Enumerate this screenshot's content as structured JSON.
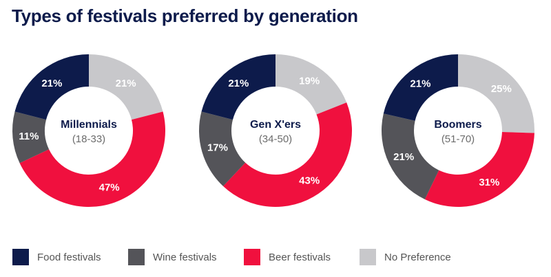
{
  "chart_data": {
    "type": "pie",
    "title": "Types of festivals preferred by generation",
    "categories": [
      "Food festivals",
      "Wine festivals",
      "Beer festivals",
      "No Preference"
    ],
    "colors": [
      "#0d1b4b",
      "#545459",
      "#f0103e",
      "#c8c8cb"
    ],
    "legend_position": "bottom",
    "charts": [
      {
        "name": "Millennials",
        "subtitle": "(18-33)",
        "values": [
          21,
          11,
          47,
          21
        ]
      },
      {
        "name": "Gen X'ers",
        "subtitle": "(34-50)",
        "values": [
          21,
          17,
          43,
          19
        ]
      },
      {
        "name": "Boomers",
        "subtitle": "(51-70)",
        "values": [
          21,
          21,
          31,
          25
        ]
      }
    ]
  }
}
